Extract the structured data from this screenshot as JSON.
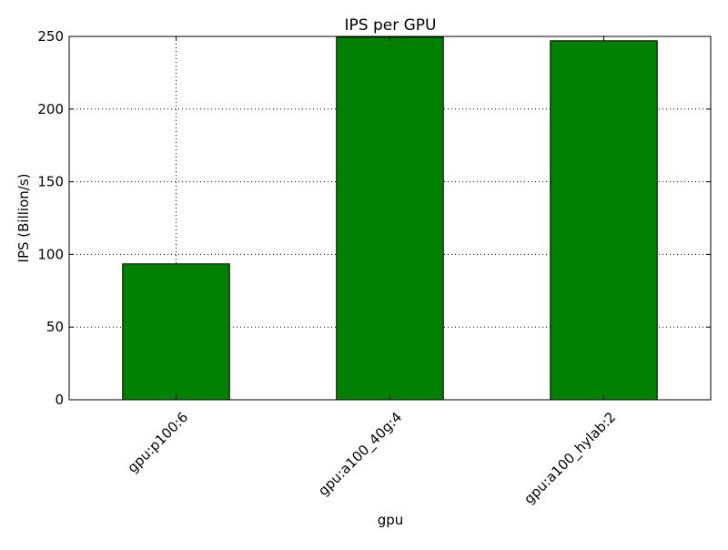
{
  "chart_data": {
    "type": "bar",
    "title": "IPS per GPU",
    "xlabel": "gpu",
    "ylabel": "IPS (Billion/s)",
    "categories": [
      "gpu:p100:6",
      "gpu:a100_40g:4",
      "gpu:a100_hylab:2"
    ],
    "values": [
      93.5,
      249.5,
      247
    ],
    "ylim": [
      0,
      250
    ],
    "yticks": [
      0,
      50,
      100,
      150,
      200,
      250
    ],
    "grid": true,
    "legend": "none",
    "bar_color": "#008000",
    "bar_edge_color": "#000000",
    "grid_color": "#000000"
  }
}
